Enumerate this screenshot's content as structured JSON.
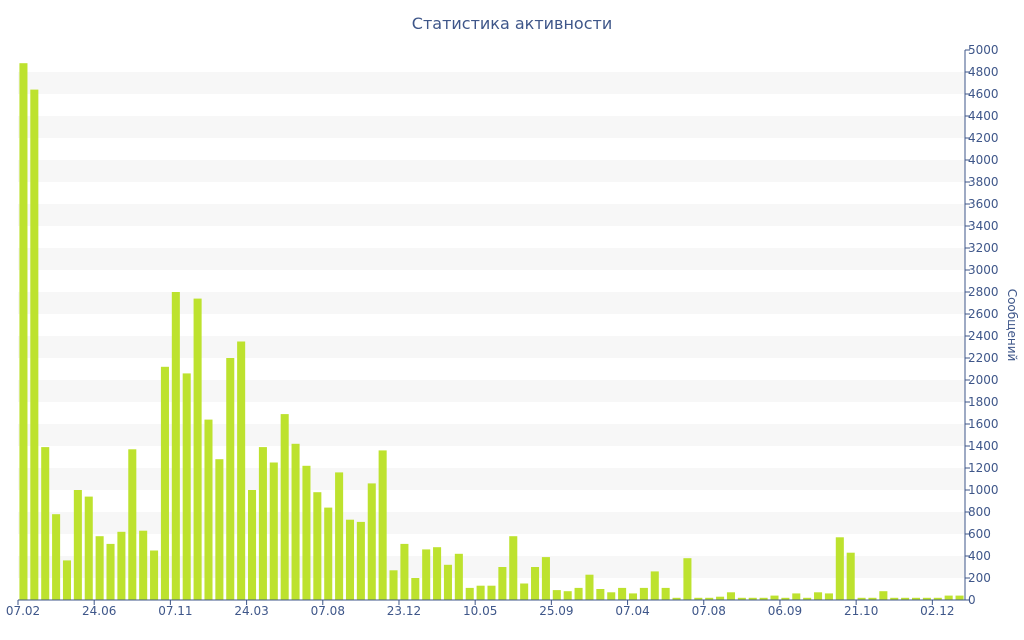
{
  "colors": {
    "bar": "#bde22e",
    "band": "#f7f7f7",
    "axis": "#3e5689",
    "text": "#3e5689"
  },
  "chart_data": {
    "type": "bar",
    "title": "Статистика активности",
    "ylabel": "Сообщений",
    "ylim": [
      0,
      5000
    ],
    "yticks": [
      0,
      200,
      400,
      600,
      800,
      1000,
      1200,
      1400,
      1600,
      1800,
      2000,
      2200,
      2400,
      2600,
      2800,
      3000,
      3200,
      3400,
      3600,
      3800,
      4000,
      4200,
      4400,
      4600,
      4800,
      5000
    ],
    "y_axis_side": "right",
    "grid": "alternating horizontal bands",
    "xtick_labels": [
      {
        "label": "07.02",
        "index": 0
      },
      {
        "label": "24.06",
        "index": 7
      },
      {
        "label": "07.11",
        "index": 14
      },
      {
        "label": "24.03",
        "index": 21
      },
      {
        "label": "07.08",
        "index": 28
      },
      {
        "label": "23.12",
        "index": 35
      },
      {
        "label": "10.05",
        "index": 42
      },
      {
        "label": "25.09",
        "index": 49
      },
      {
        "label": "07.04",
        "index": 56
      },
      {
        "label": "07.08",
        "index": 63
      },
      {
        "label": "06.09",
        "index": 70
      },
      {
        "label": "21.10",
        "index": 77
      },
      {
        "label": "02.12",
        "index": 84
      }
    ],
    "values": [
      4880,
      4640,
      1390,
      780,
      360,
      1000,
      940,
      580,
      510,
      620,
      1370,
      630,
      450,
      2120,
      2800,
      2060,
      2740,
      1640,
      1280,
      2200,
      2350,
      1000,
      1390,
      1250,
      1690,
      1420,
      1220,
      980,
      840,
      1160,
      730,
      710,
      1060,
      1360,
      270,
      510,
      200,
      460,
      480,
      320,
      420,
      110,
      130,
      130,
      300,
      580,
      150,
      300,
      390,
      90,
      80,
      110,
      230,
      100,
      70,
      110,
      60,
      110,
      260,
      110,
      20,
      380,
      20,
      20,
      30,
      70,
      20,
      20,
      20,
      40,
      20,
      60,
      20,
      70,
      60,
      570,
      430,
      20,
      20,
      80,
      20,
      20,
      20,
      20,
      20,
      40,
      40
    ]
  }
}
